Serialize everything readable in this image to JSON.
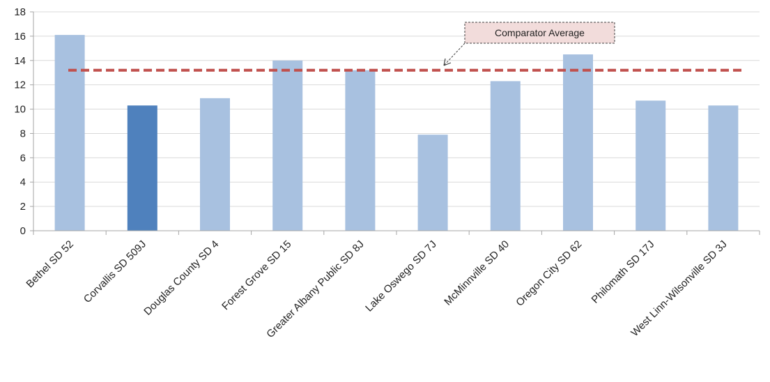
{
  "chart_data": {
    "type": "bar",
    "categories": [
      "Bethel SD 52",
      "Corvallis SD 509J",
      "Douglas County SD 4",
      "Forest Grove SD 15",
      "Greater Albany Public SD 8J",
      "Lake Oswego SD 7J",
      "McMinnville SD 40",
      "Oregon City SD 62",
      "Philomath SD 17J",
      "West Linn-Wilsonville SD 3J"
    ],
    "values": [
      16.1,
      10.3,
      10.9,
      14.0,
      13.2,
      7.9,
      12.3,
      14.5,
      10.7,
      10.3
    ],
    "highlight_category": "Corvallis SD 509J",
    "ylim": [
      0,
      18
    ],
    "yticks": [
      0,
      2,
      4,
      6,
      8,
      10,
      12,
      14,
      16,
      18
    ],
    "grid": true,
    "reference_line": {
      "label": "Comparator Average",
      "value": 13.2
    },
    "colors": {
      "bar": "#a8c1e0",
      "bar_highlight": "#4f81bd",
      "reference_line": "#c0504d",
      "grid": "#d9d9d9",
      "axis": "#a6a6a6",
      "callout_fill": "#f2dcdb",
      "callout_border": "#404040"
    }
  }
}
